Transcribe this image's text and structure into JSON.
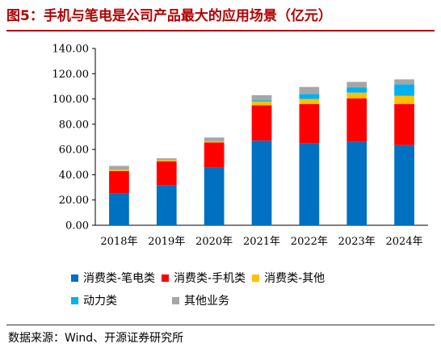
{
  "title": "图5：手机与笔电是公司产品最大的应用场景（亿元）",
  "source": "数据来源：Wind、开源证券研究所",
  "chart_data": {
    "type": "bar",
    "stacked": true,
    "categories": [
      "2018年",
      "2019年",
      "2020年",
      "2021年",
      "2022年",
      "2023年",
      "2024年"
    ],
    "series": [
      {
        "name": "消费类-笔电类",
        "color": "#0070C0",
        "values": [
          25.5,
          31.5,
          45.5,
          67.0,
          65.0,
          66.0,
          63.5
        ]
      },
      {
        "name": "消费类-手机类",
        "color": "#FF0000",
        "values": [
          17.5,
          19.0,
          20.0,
          28.0,
          31.0,
          34.5,
          32.5
        ]
      },
      {
        "name": "消费类-其他",
        "color": "#FFC000",
        "values": [
          1.0,
          1.0,
          1.0,
          3.0,
          4.0,
          4.5,
          6.5
        ]
      },
      {
        "name": "动力类",
        "color": "#00B0F0",
        "values": [
          0.0,
          0.0,
          0.0,
          1.0,
          4.0,
          4.0,
          9.0
        ]
      },
      {
        "name": "其他业务",
        "color": "#A6A6A6",
        "values": [
          3.0,
          1.5,
          3.0,
          4.0,
          5.5,
          4.5,
          4.0
        ]
      }
    ],
    "ylim": [
      0,
      140
    ],
    "yticks": [
      "0.00",
      "20.00",
      "40.00",
      "60.00",
      "80.00",
      "100.00",
      "120.00",
      "140.00"
    ],
    "grid": false,
    "legend_position": "bottom"
  }
}
